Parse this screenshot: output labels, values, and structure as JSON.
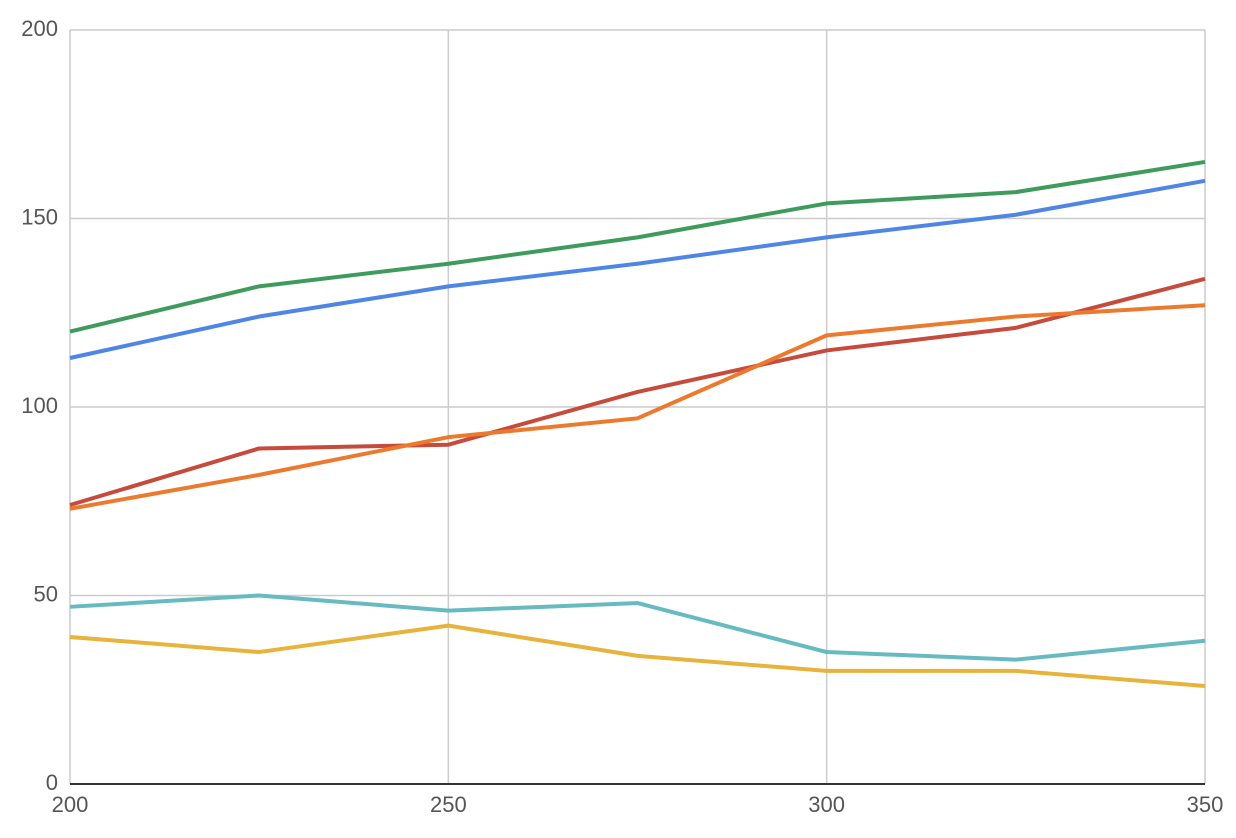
{
  "chart_data": {
    "type": "line",
    "x": [
      200,
      225,
      250,
      275,
      300,
      325,
      350
    ],
    "series": [
      {
        "color": "#3f9b5c",
        "values": [
          120,
          132,
          138,
          145,
          154,
          157,
          165
        ]
      },
      {
        "color": "#4f86e6",
        "values": [
          113,
          124,
          132,
          138,
          145,
          151,
          160
        ]
      },
      {
        "color": "#c64b3c",
        "values": [
          74,
          89,
          90,
          104,
          115,
          121,
          134
        ]
      },
      {
        "color": "#ec7a2e",
        "values": [
          73,
          82,
          92,
          97,
          119,
          124,
          127
        ]
      },
      {
        "color": "#67bbc0",
        "values": [
          47,
          50,
          46,
          48,
          35,
          33,
          38
        ]
      },
      {
        "color": "#e7b33c",
        "values": [
          39,
          35,
          42,
          34,
          30,
          30,
          26
        ]
      }
    ],
    "xlim": [
      200,
      350
    ],
    "xticks": [
      200,
      250,
      300,
      350
    ],
    "ylim": [
      0,
      200
    ],
    "yticks": [
      0,
      50,
      100,
      150,
      200
    ],
    "grid": true
  }
}
